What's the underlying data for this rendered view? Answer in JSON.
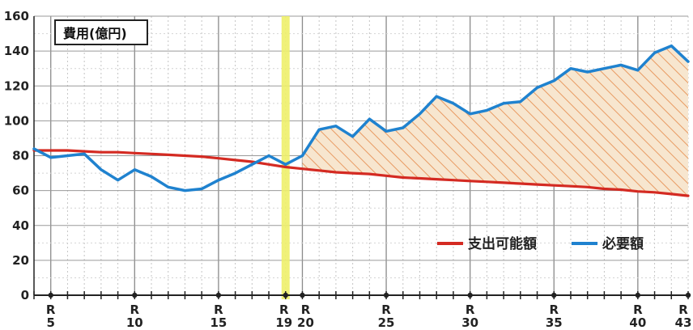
{
  "chart_data": {
    "type": "line",
    "unit_label": "費用(億円)",
    "ylim": [
      0,
      160
    ],
    "yticks": [
      0,
      20,
      40,
      60,
      80,
      100,
      120,
      140,
      160
    ],
    "xlim": [
      4,
      43
    ],
    "x": [
      4,
      5,
      6,
      7,
      8,
      9,
      10,
      11,
      12,
      13,
      14,
      15,
      16,
      17,
      18,
      19,
      20,
      21,
      22,
      23,
      24,
      25,
      26,
      27,
      28,
      29,
      30,
      31,
      32,
      33,
      34,
      35,
      36,
      37,
      38,
      39,
      40,
      41,
      42,
      43
    ],
    "xtick_labels": [
      {
        "x": 5,
        "era": "R",
        "num": "5"
      },
      {
        "x": 10,
        "era": "R",
        "num": "10"
      },
      {
        "x": 15,
        "era": "R",
        "num": "15"
      },
      {
        "x": 19,
        "era": "R",
        "num": "19"
      },
      {
        "x": 20,
        "era": "R",
        "num": "20"
      },
      {
        "x": 25,
        "era": "R",
        "num": "25"
      },
      {
        "x": 30,
        "era": "R",
        "num": "30"
      },
      {
        "x": 35,
        "era": "R",
        "num": "35"
      },
      {
        "x": 40,
        "era": "R",
        "num": "40"
      },
      {
        "x": 43,
        "era": "R",
        "num": "43"
      }
    ],
    "highlight_x": 19,
    "hatch_from_x": 20,
    "grid": true,
    "legend_position": "bottom-right",
    "series": [
      {
        "name": "支出可能額",
        "color": "#d42a22",
        "values": [
          83,
          83,
          83,
          82.5,
          82,
          82,
          81.5,
          81,
          80.5,
          80,
          79.5,
          78.5,
          77.5,
          76.5,
          75,
          73.5,
          72.5,
          71.5,
          70.5,
          70,
          69.5,
          68.5,
          67.5,
          67,
          66.5,
          66,
          65.5,
          65,
          64.5,
          64,
          63.5,
          63,
          62.5,
          62,
          61,
          60.5,
          59.5,
          59,
          58,
          57
        ]
      },
      {
        "name": "必要額",
        "color": "#1f82cf",
        "values": [
          84,
          79,
          80,
          81,
          72,
          66,
          72,
          68,
          62,
          60,
          61,
          66,
          70,
          75,
          80,
          75,
          80,
          95,
          97,
          91,
          101,
          94,
          96,
          104,
          114,
          110,
          104,
          106,
          110,
          111,
          119,
          123,
          130,
          128,
          130,
          132,
          129,
          139,
          143,
          134
        ]
      }
    ]
  }
}
